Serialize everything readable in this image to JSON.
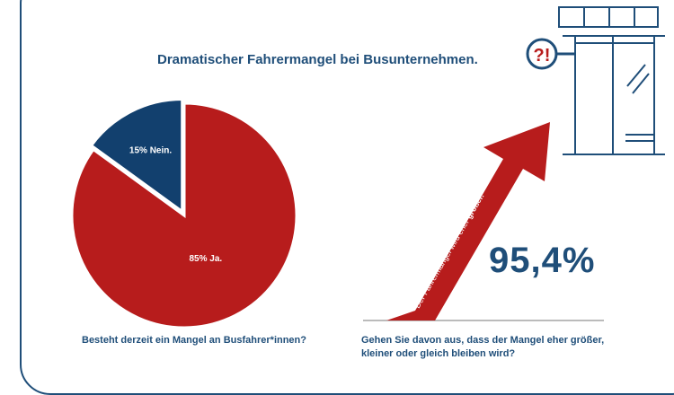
{
  "title": "Dramatischer Fahrermangel bei Busunternehmen.",
  "colors": {
    "red": "#b71c1c",
    "blue": "#12406e",
    "text": "#1f4e79",
    "line": "#777777"
  },
  "chart_data": {
    "type": "pie",
    "title": "Dramatischer Fahrermangel bei Busunternehmen.",
    "question": "Besteht derzeit ein Mangel an Busfahrer*innen?",
    "slices": [
      {
        "label": "15% Nein.",
        "value": 15,
        "color": "#12406e"
      },
      {
        "label": "85% Ja.",
        "value": 85,
        "color": "#b71c1c"
      }
    ]
  },
  "stat": {
    "value": "95,4%",
    "arrow_label_prefix": "Der Fahrermangel wird eher ",
    "arrow_label_bold": "größer.",
    "question": "Gehen Sie davon aus, dass der Mangel eher größer, kleiner oder gleich bleiben wird?"
  },
  "icons": {
    "warning": "?!",
    "building": "bus-station-icon"
  }
}
